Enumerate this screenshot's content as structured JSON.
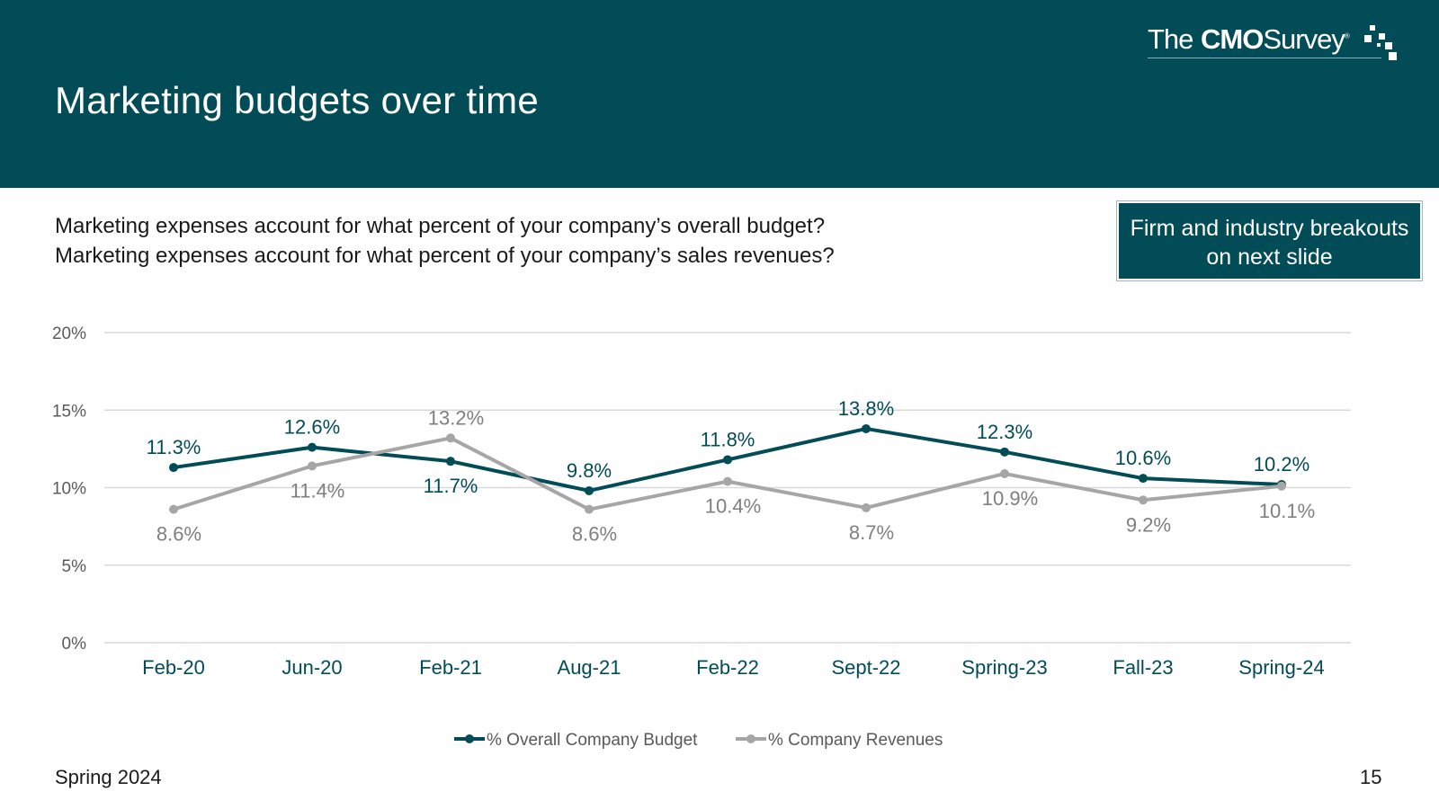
{
  "slide": {
    "title": "Marketing budgets over time",
    "logo": {
      "prefix": "The",
      "bold": "CMO",
      "suffix": "Survey",
      "mark": "®"
    },
    "questions": [
      "Marketing expenses account for what percent of your company’s overall budget?",
      "Marketing expenses account for what percent of your company’s sales revenues?"
    ],
    "callout": "Firm and industry breakouts on next slide",
    "footer_left": "Spring 2024",
    "page_number": "15",
    "colors": {
      "header": "#024c57",
      "budget": "#024c57",
      "revenues": "#a6a6a6",
      "grid": "#d9d9d9"
    }
  },
  "chart_data": {
    "type": "line",
    "categories": [
      "Feb-20",
      "Jun-20",
      "Feb-21",
      "Aug-21",
      "Feb-22",
      "Sept-22",
      "Spring-23",
      "Fall-23",
      "Spring-24"
    ],
    "ylim": [
      0,
      20
    ],
    "yticks": [
      "0%",
      "5%",
      "10%",
      "15%",
      "20%"
    ],
    "grid": true,
    "legend_position": "bottom",
    "series": [
      {
        "name": "% Overall Company Budget",
        "values": [
          11.3,
          12.6,
          11.7,
          9.8,
          11.8,
          13.8,
          12.3,
          10.6,
          10.2
        ],
        "labels": [
          "11.3%",
          "12.6%",
          "11.7%",
          "9.8%",
          "11.8%",
          "13.8%",
          "12.3%",
          "10.6%",
          "10.2%"
        ]
      },
      {
        "name": "% Company Revenues",
        "values": [
          8.6,
          11.4,
          13.2,
          8.6,
          10.4,
          8.7,
          10.9,
          9.2,
          10.1
        ],
        "labels": [
          "8.6%",
          "11.4%",
          "13.2%",
          "8.6%",
          "10.4%",
          "8.7%",
          "10.9%",
          "9.2%",
          "10.1%"
        ]
      }
    ]
  }
}
